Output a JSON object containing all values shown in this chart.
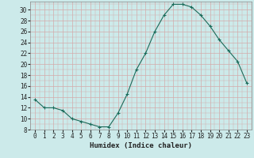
{
  "x": [
    0,
    1,
    2,
    3,
    4,
    5,
    6,
    7,
    8,
    9,
    10,
    11,
    12,
    13,
    14,
    15,
    16,
    17,
    18,
    19,
    20,
    21,
    22,
    23
  ],
  "y": [
    13.5,
    12.0,
    12.0,
    11.5,
    10.0,
    9.5,
    9.0,
    8.5,
    8.5,
    11.0,
    14.5,
    19.0,
    22.0,
    26.0,
    29.0,
    31.0,
    31.0,
    30.5,
    29.0,
    27.0,
    24.5,
    22.5,
    20.5,
    16.5
  ],
  "line_color": "#1a6b5a",
  "marker": "+",
  "bg_color": "#cceaea",
  "grid_color": "#d4aaaa",
  "xlabel": "Humidex (Indice chaleur)",
  "xlim": [
    -0.5,
    23.5
  ],
  "ylim": [
    8,
    31.5
  ],
  "yticks": [
    8,
    10,
    12,
    14,
    16,
    18,
    20,
    22,
    24,
    26,
    28,
    30
  ],
  "xticks": [
    0,
    1,
    2,
    3,
    4,
    5,
    6,
    7,
    8,
    9,
    10,
    11,
    12,
    13,
    14,
    15,
    16,
    17,
    18,
    19,
    20,
    21,
    22,
    23
  ],
  "label_fontsize": 6.5,
  "tick_fontsize": 5.5
}
